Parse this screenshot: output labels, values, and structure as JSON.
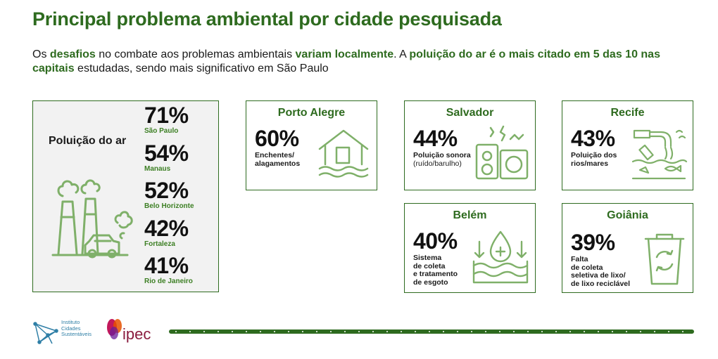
{
  "header": {
    "title": "Principal problema ambiental por cidade pesquisada",
    "subtitle": {
      "p1": "Os ",
      "h1": "desafios",
      "p2": " no combate aos problemas ambientais ",
      "h2": "variam localmente",
      "p3": ". A ",
      "h3": "poluição do ar é o mais citado em 5 das 10 nas capitais",
      "p4": " estudadas, sendo mais significativo em São Paulo"
    }
  },
  "air_card": {
    "label": "Poluição do ar",
    "items": [
      {
        "pct": "71%",
        "city": "São Paulo"
      },
      {
        "pct": "54%",
        "city": "Manaus"
      },
      {
        "pct": "52%",
        "city": "Belo Horizonte"
      },
      {
        "pct": "42%",
        "city": "Fortaleza"
      },
      {
        "pct": "41%",
        "city": "Rio de Janeiro"
      }
    ]
  },
  "cities": {
    "porto_alegre": {
      "name": "Porto Alegre",
      "pct": "60%",
      "desc": [
        "Enchentes/",
        "alagamentos"
      ],
      "icon": "flooded-house-icon"
    },
    "salvador": {
      "name": "Salvador",
      "pct": "44%",
      "desc": [
        "Poluição sonora"
      ],
      "desc_light": "(ruído/barulho)",
      "icon": "speaker-noise-icon"
    },
    "recife": {
      "name": "Recife",
      "pct": "43%",
      "desc": [
        "Poluição dos",
        "rios/mares"
      ],
      "icon": "polluted-water-icon"
    },
    "belem": {
      "name": "Belém",
      "pct": "40%",
      "desc": [
        "Sistema",
        "de coleta",
        "e tratamento",
        "de esgoto"
      ],
      "icon": "water-drop-sewage-icon"
    },
    "goiania": {
      "name": "Goiânia",
      "pct": "39%",
      "desc": [
        "Falta",
        "de coleta",
        "seletiva de lixo/",
        "de lixo reciclável"
      ],
      "icon": "recycling-bin-icon"
    }
  },
  "footer": {
    "logo1": [
      "Instituto",
      "Cidades",
      "Sustentáveis"
    ],
    "logo2": "ipec"
  },
  "colors": {
    "accent": "#2e6b1f",
    "accent_light": "#7fb069",
    "panel_bg": "#f2f2f2"
  }
}
